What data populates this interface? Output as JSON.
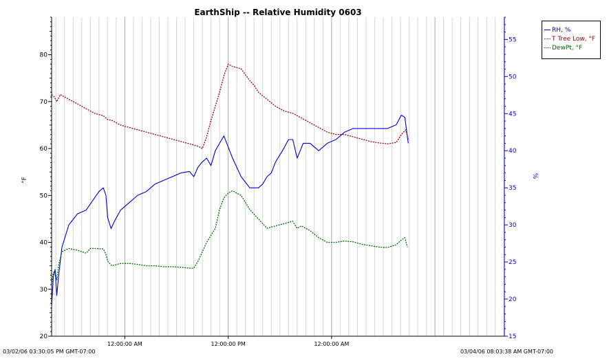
{
  "chart_data": {
    "type": "line",
    "title": "EarthShip -- Relative Humidity 0603",
    "ylabel_left": "°F",
    "ylabel_right": "%",
    "ylim_left": [
      20,
      88
    ],
    "ylim_right": [
      15,
      58
    ],
    "yticks_left": [
      20,
      30,
      40,
      50,
      60,
      70,
      80
    ],
    "yticks_right": [
      15,
      20,
      25,
      30,
      35,
      40,
      45,
      50,
      55
    ],
    "xlim_hours": [
      0,
      52.56
    ],
    "x_start_label": "03/02/06 03:30:05 PM GMT-07:00",
    "x_end_label": "03/04/06 08:03:38 AM GMT-07:00",
    "x_tick_labels": [
      {
        "hours": 8.5,
        "label": "12:00:00 AM"
      },
      {
        "hours": 20.5,
        "label": "12:00:00 PM"
      },
      {
        "hours": 32.5,
        "label": "12:00:00 AM"
      }
    ],
    "vertical_grid": true,
    "legend_position": "top-right outside",
    "series": [
      {
        "name": "RH, %",
        "axis": "right",
        "color": "#0000cc",
        "style": "solid",
        "points": [
          [
            0,
            19
          ],
          [
            0.2,
            23
          ],
          [
            0.4,
            24
          ],
          [
            0.6,
            20.5
          ],
          [
            0.8,
            23
          ],
          [
            1.2,
            27
          ],
          [
            2,
            30
          ],
          [
            3,
            31.5
          ],
          [
            4,
            32
          ],
          [
            4.9,
            33.5
          ],
          [
            5.5,
            34.5
          ],
          [
            6,
            35
          ],
          [
            6.3,
            34
          ],
          [
            6.5,
            31
          ],
          [
            6.9,
            29.5
          ],
          [
            7.3,
            30.5
          ],
          [
            8,
            32
          ],
          [
            9,
            33
          ],
          [
            10,
            34
          ],
          [
            11,
            34.5
          ],
          [
            12,
            35.5
          ],
          [
            13,
            36
          ],
          [
            14,
            36.5
          ],
          [
            15,
            37
          ],
          [
            16,
            37.2
          ],
          [
            16.5,
            36.5
          ],
          [
            17,
            37.8
          ],
          [
            17.5,
            38.5
          ],
          [
            18,
            39
          ],
          [
            18.5,
            38
          ],
          [
            19,
            40
          ],
          [
            19.5,
            41
          ],
          [
            20,
            42
          ],
          [
            20.5,
            40.5
          ],
          [
            21,
            39
          ],
          [
            22,
            36.5
          ],
          [
            23,
            35
          ],
          [
            24,
            35
          ],
          [
            24.5,
            35.5
          ],
          [
            25,
            36.5
          ],
          [
            25.5,
            37
          ],
          [
            26,
            38.5
          ],
          [
            26.8,
            40
          ],
          [
            27.5,
            41.5
          ],
          [
            28,
            41.5
          ],
          [
            28.5,
            39
          ],
          [
            29.2,
            41
          ],
          [
            30,
            41
          ],
          [
            31,
            40
          ],
          [
            32,
            41
          ],
          [
            33,
            41.5
          ],
          [
            34,
            42.5
          ],
          [
            35,
            43
          ],
          [
            36,
            43
          ],
          [
            37,
            43
          ],
          [
            38,
            43
          ],
          [
            39,
            43
          ],
          [
            40,
            43.5
          ],
          [
            40.6,
            44.8
          ],
          [
            41,
            44.5
          ],
          [
            41.4,
            41
          ]
        ]
      },
      {
        "name": "T Tree Low, °F",
        "axis": "left",
        "color": "#990000",
        "style": "dotted",
        "points": [
          [
            0,
            71.5
          ],
          [
            0.3,
            71
          ],
          [
            0.6,
            70
          ],
          [
            1,
            71.5
          ],
          [
            2,
            70.5
          ],
          [
            3,
            69.5
          ],
          [
            4,
            68.5
          ],
          [
            5,
            67.5
          ],
          [
            6,
            67
          ],
          [
            6.5,
            66.2
          ],
          [
            7,
            66
          ],
          [
            8,
            65
          ],
          [
            9,
            64.5
          ],
          [
            10,
            64
          ],
          [
            11,
            63.5
          ],
          [
            12,
            63
          ],
          [
            13,
            62.5
          ],
          [
            14,
            62
          ],
          [
            15,
            61.5
          ],
          [
            16,
            61
          ],
          [
            17,
            60.5
          ],
          [
            17.5,
            60
          ],
          [
            18,
            62.5
          ],
          [
            18.5,
            66
          ],
          [
            19,
            69
          ],
          [
            19.5,
            72
          ],
          [
            20,
            75.5
          ],
          [
            20.5,
            78
          ],
          [
            21,
            77.5
          ],
          [
            22,
            77
          ],
          [
            23,
            74.5
          ],
          [
            23.5,
            73.5
          ],
          [
            24,
            72
          ],
          [
            25,
            70.5
          ],
          [
            26,
            69
          ],
          [
            27,
            68
          ],
          [
            28,
            67.5
          ],
          [
            29,
            66.5
          ],
          [
            30,
            65.5
          ],
          [
            31,
            64.5
          ],
          [
            32,
            63.5
          ],
          [
            33,
            63
          ],
          [
            34,
            63
          ],
          [
            35,
            62.5
          ],
          [
            36,
            62
          ],
          [
            37,
            61.5
          ],
          [
            38,
            61.2
          ],
          [
            39,
            61
          ],
          [
            40,
            61.3
          ],
          [
            40.6,
            63
          ],
          [
            41.1,
            64
          ],
          [
            41.4,
            62
          ]
        ]
      },
      {
        "name": "DewPt, °F",
        "axis": "left",
        "color": "#006600",
        "style": "dotted",
        "points": [
          [
            0,
            31
          ],
          [
            0.2,
            33.5
          ],
          [
            0.4,
            34
          ],
          [
            0.6,
            32
          ],
          [
            0.8,
            35
          ],
          [
            1.2,
            38
          ],
          [
            2,
            38.7
          ],
          [
            3,
            38.3
          ],
          [
            4,
            37.7
          ],
          [
            4.5,
            38.7
          ],
          [
            5,
            38.7
          ],
          [
            6,
            38.6
          ],
          [
            6.3,
            37.5
          ],
          [
            6.5,
            36
          ],
          [
            7,
            35
          ],
          [
            8,
            35.5
          ],
          [
            9,
            35.5
          ],
          [
            10,
            35.3
          ],
          [
            11,
            35
          ],
          [
            12,
            35
          ],
          [
            13,
            34.8
          ],
          [
            14,
            34.8
          ],
          [
            15,
            34.7
          ],
          [
            16,
            34.5
          ],
          [
            16.5,
            34.5
          ],
          [
            17,
            36
          ],
          [
            18,
            40
          ],
          [
            19,
            43
          ],
          [
            19.5,
            47
          ],
          [
            20,
            49.5
          ],
          [
            20.5,
            50.5
          ],
          [
            21,
            51
          ],
          [
            22,
            50
          ],
          [
            22.5,
            48.5
          ],
          [
            23,
            47
          ],
          [
            24,
            45
          ],
          [
            25,
            43
          ],
          [
            26,
            43.5
          ],
          [
            27,
            44
          ],
          [
            28,
            44.5
          ],
          [
            28.5,
            43
          ],
          [
            29,
            43.5
          ],
          [
            30,
            42.5
          ],
          [
            31,
            41
          ],
          [
            32,
            40
          ],
          [
            33,
            40
          ],
          [
            34,
            40.3
          ],
          [
            35,
            40.1
          ],
          [
            36,
            39.6
          ],
          [
            37,
            39.3
          ],
          [
            38,
            39
          ],
          [
            39,
            38.9
          ],
          [
            40,
            39.5
          ],
          [
            40.6,
            40.5
          ],
          [
            41,
            41
          ],
          [
            41.3,
            39
          ]
        ]
      }
    ]
  }
}
